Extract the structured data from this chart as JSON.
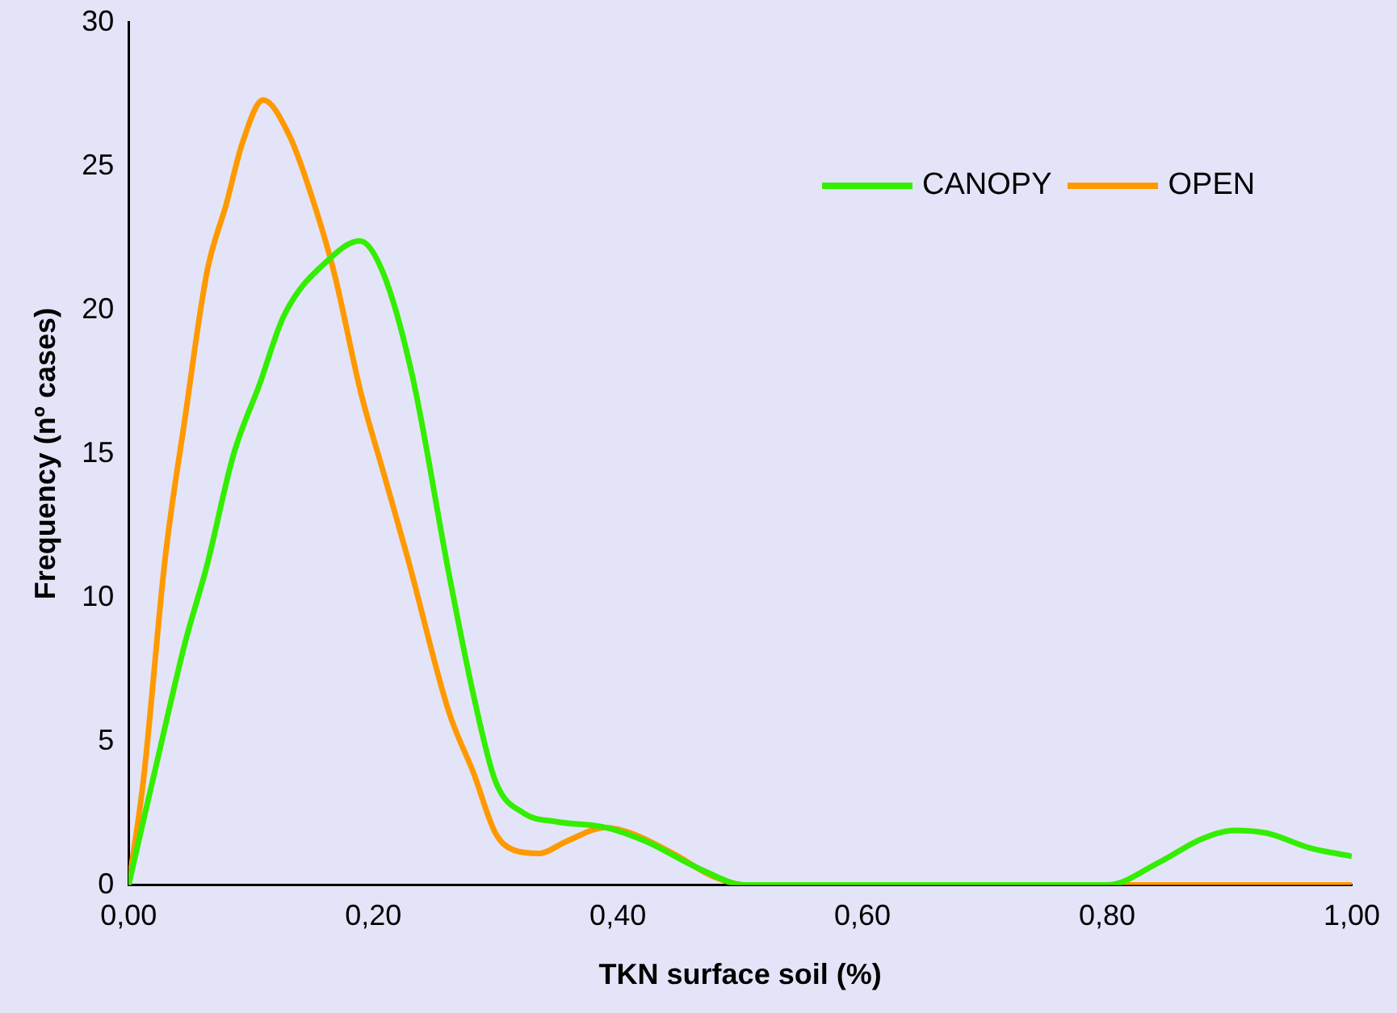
{
  "chart_data": {
    "type": "line",
    "xlabel": "TKN surface soil (%)",
    "ylabel": "Frequency (nº cases)",
    "xlim": [
      0,
      1
    ],
    "xticks": [
      {
        "value": 0,
        "label": "0,00"
      },
      {
        "value": 0.2,
        "label": "0,20"
      },
      {
        "value": 0.4,
        "label": "0,40"
      },
      {
        "value": 0.6,
        "label": "0,60"
      },
      {
        "value": 0.8,
        "label": "0,80"
      },
      {
        "value": 1,
        "label": "1,00"
      }
    ],
    "ylim": [
      0,
      30
    ],
    "yticks": [
      0,
      5,
      10,
      15,
      20,
      25,
      30
    ],
    "grid": false,
    "legend": "top right",
    "marker": "none",
    "line_style": "solid",
    "series": [
      {
        "name": "CANOPY",
        "color": "#33ee00",
        "x": [
          0,
          0.026,
          0.046,
          0.064,
          0.086,
          0.107,
          0.127,
          0.165,
          0.189,
          0.208,
          0.232,
          0.262,
          0.282,
          0.3,
          0.323,
          0.35,
          0.39,
          0.424,
          0.465,
          0.505,
          0.6,
          0.7,
          0.8,
          0.843,
          0.877,
          0.904,
          0.931,
          0.965,
          1
        ],
        "values": [
          0,
          4.8,
          8.4,
          11.1,
          15,
          17.4,
          19.8,
          21.8,
          22.4,
          21.3,
          17.7,
          10.8,
          6.6,
          3.6,
          2.5,
          2.2,
          2,
          1.5,
          0.6,
          0,
          0,
          0,
          0,
          0.8,
          1.6,
          1.9,
          1.8,
          1.3,
          1
        ]
      },
      {
        "name": "OPEN",
        "color": "#ff9900",
        "x": [
          0,
          0.012,
          0.03,
          0.046,
          0.064,
          0.08,
          0.093,
          0.11,
          0.131,
          0.147,
          0.168,
          0.19,
          0.208,
          0.228,
          0.262,
          0.282,
          0.3,
          0.316,
          0.336,
          0.357,
          0.39,
          0.411,
          0.445,
          0.478,
          0.505,
          0.6,
          0.7,
          0.8,
          0.9,
          1
        ],
        "values": [
          0,
          3.6,
          11.4,
          16.2,
          21.3,
          23.7,
          25.8,
          27.3,
          26.1,
          24.3,
          21.3,
          17.1,
          14.4,
          11.4,
          6,
          3.9,
          1.8,
          1.2,
          1.1,
          1.5,
          2,
          1.8,
          1.1,
          0.3,
          0,
          0,
          0,
          0,
          0,
          0
        ]
      }
    ]
  }
}
